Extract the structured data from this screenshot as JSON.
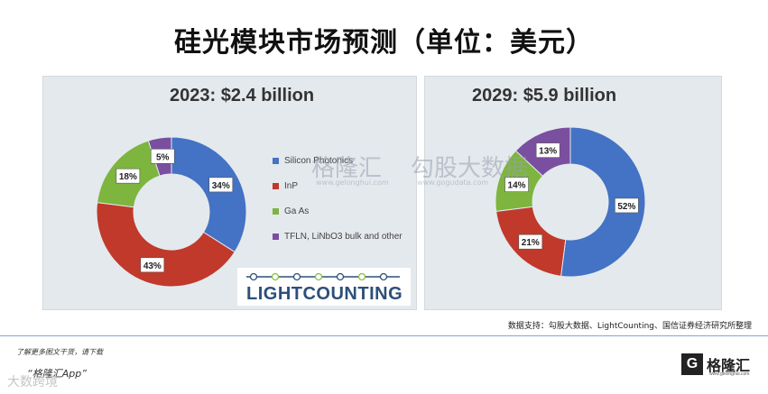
{
  "page": {
    "title": "硅光模块市场预测（单位：美元）",
    "source": "数据支持：勾股大数据、LightCounting、国信证券经济研究所整理",
    "promo_line1": "了解更多图文干货，请下载",
    "promo_line2": "“格隆汇App”",
    "brand_name": "格隆汇",
    "brand_icon": "G",
    "brand_sub": "www.gelonghui.com",
    "corner_mark": "大数跨境",
    "watermark_left": "格隆汇",
    "watermark_left_url": "www.gelonghui.com",
    "watermark_right": "勾股大数据",
    "watermark_right_url": "www.gogudata.com",
    "logo_text": "LIGHTCOUNTING"
  },
  "legend": [
    {
      "label": "Silicon Photonics",
      "color": "#4472c4"
    },
    {
      "label": "InP",
      "color": "#c0392b"
    },
    {
      "label": "Ga As",
      "color": "#7db53e"
    },
    {
      "label": "TFLN, LiNbO3 bulk and other",
      "color": "#7b4fa0"
    }
  ],
  "chart_data": [
    {
      "type": "pie",
      "title": "2023: $2.4 billion",
      "categories": [
        "Silicon Photonics",
        "InP",
        "Ga As",
        "TFLN, LiNbO3 bulk and other"
      ],
      "values": [
        34,
        43,
        18,
        5
      ],
      "labels": [
        "34%",
        "43%",
        "18%",
        "5%"
      ],
      "colors": [
        "#4472c4",
        "#c0392b",
        "#7db53e",
        "#7b4fa0"
      ]
    },
    {
      "type": "pie",
      "title": "2029: $5.9 billion",
      "categories": [
        "Silicon Photonics",
        "InP",
        "Ga As",
        "TFLN, LiNbO3 bulk and other"
      ],
      "values": [
        52,
        21,
        14,
        13
      ],
      "labels": [
        "52%",
        "21%",
        "14%",
        "13%"
      ],
      "colors": [
        "#4472c4",
        "#c0392b",
        "#7db53e",
        "#7b4fa0"
      ]
    }
  ]
}
